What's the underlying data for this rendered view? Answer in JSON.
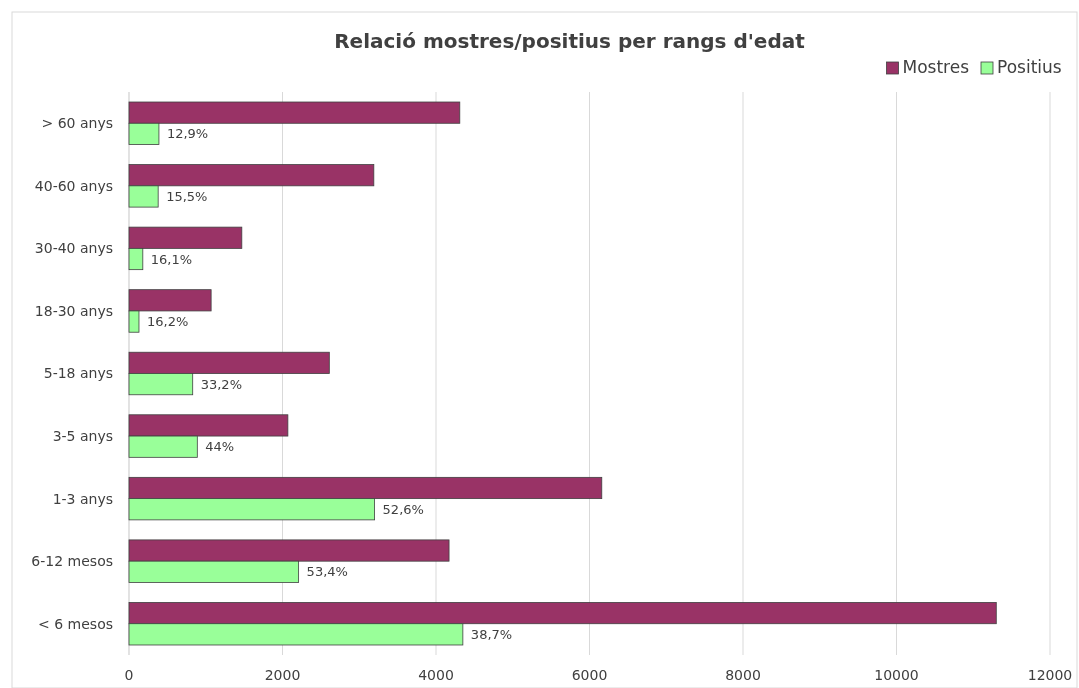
{
  "chart_data": {
    "type": "bar",
    "orientation": "horizontal",
    "title": "Relació mostres/positius per rangs d'edat",
    "categories": [
      "> 60 anys",
      "40-60 anys",
      "30-40 anys",
      "18-30 anys",
      "5-18 anys",
      "3-5 anys",
      "1-3 anys",
      "6-12 mesos",
      "< 6 mesos"
    ],
    "series": [
      {
        "name": "Mostres",
        "color": "#993366",
        "values": [
          4310,
          3190,
          1470,
          1070,
          2610,
          2070,
          6160,
          4170,
          11300
        ]
      },
      {
        "name": "Positius",
        "color": "#99ff99",
        "values": [
          390,
          380,
          180,
          130,
          830,
          890,
          3200,
          2210,
          4350
        ]
      }
    ],
    "annotations": [
      {
        "text": "12,9%",
        "x": 390,
        "y": "> 60 anys"
      },
      {
        "text": "15,5%",
        "x": 380,
        "y": "40-60 anys"
      },
      {
        "text": "16,1%",
        "x": 180,
        "y": "30-40 anys"
      },
      {
        "text": "16,2%",
        "x": 130,
        "y": "18-30 anys"
      },
      {
        "text": "33,2%",
        "x": 830,
        "y": "5-18 anys"
      },
      {
        "text": "44%",
        "x": 890,
        "y": "3-5 anys"
      },
      {
        "text": "52,6%",
        "x": 3200,
        "y": "1-3 anys"
      },
      {
        "text": "53,4%",
        "x": 2210,
        "y": "6-12 mesos"
      },
      {
        "text": "38,7%",
        "x": 4350,
        "y": "< 6 mesos"
      }
    ],
    "xlim": [
      0,
      12000
    ],
    "xticks": [
      0,
      2000,
      4000,
      6000,
      8000,
      10000,
      12000
    ],
    "grid": "x",
    "legend": "top right"
  }
}
